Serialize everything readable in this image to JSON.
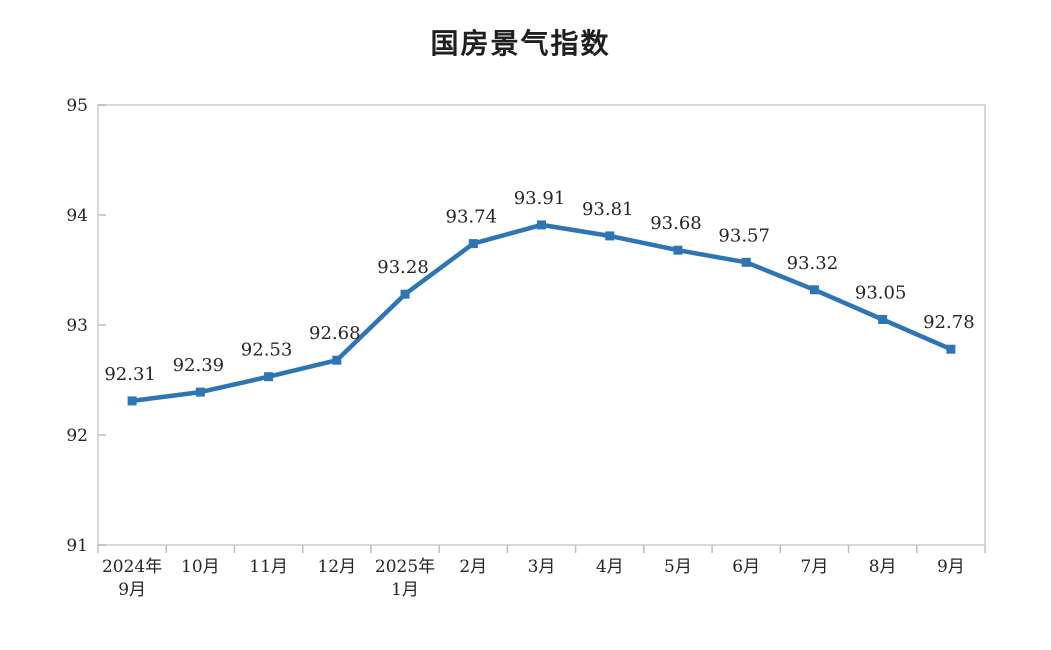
{
  "chart_data": {
    "type": "line",
    "title": "国房景气指数",
    "categories": [
      [
        "2024年",
        "9月"
      ],
      [
        "10月"
      ],
      [
        "11月"
      ],
      [
        "12月"
      ],
      [
        "2025年",
        "1月"
      ],
      [
        "2月"
      ],
      [
        "3月"
      ],
      [
        "4月"
      ],
      [
        "5月"
      ],
      [
        "6月"
      ],
      [
        "7月"
      ],
      [
        "8月"
      ],
      [
        "9月"
      ]
    ],
    "values": [
      92.31,
      92.39,
      92.53,
      92.68,
      93.28,
      93.74,
      93.91,
      93.81,
      93.68,
      93.57,
      93.32,
      93.05,
      92.78
    ],
    "point_labels": [
      "92.31",
      "92.39",
      "92.53",
      "92.68",
      "93.28",
      "93.74",
      "93.91",
      "93.81",
      "93.68",
      "93.57",
      "93.32",
      "93.05",
      "92.78"
    ],
    "ylim": [
      91,
      95
    ],
    "yticks": [
      91,
      92,
      93,
      94,
      95
    ],
    "ytick_labels": [
      "91",
      "92",
      "93",
      "94",
      "95"
    ],
    "grid": false,
    "legend": "none",
    "xlabel": "",
    "ylabel": ""
  },
  "colors": {
    "line": "#2E75B6",
    "marker": "#2E75B6",
    "plot_border": "#D9D9D9",
    "tick_mark": "#BFBFBF",
    "label_text": "#262626",
    "title_text": "#1f1f1f",
    "background": "#ffffff"
  }
}
